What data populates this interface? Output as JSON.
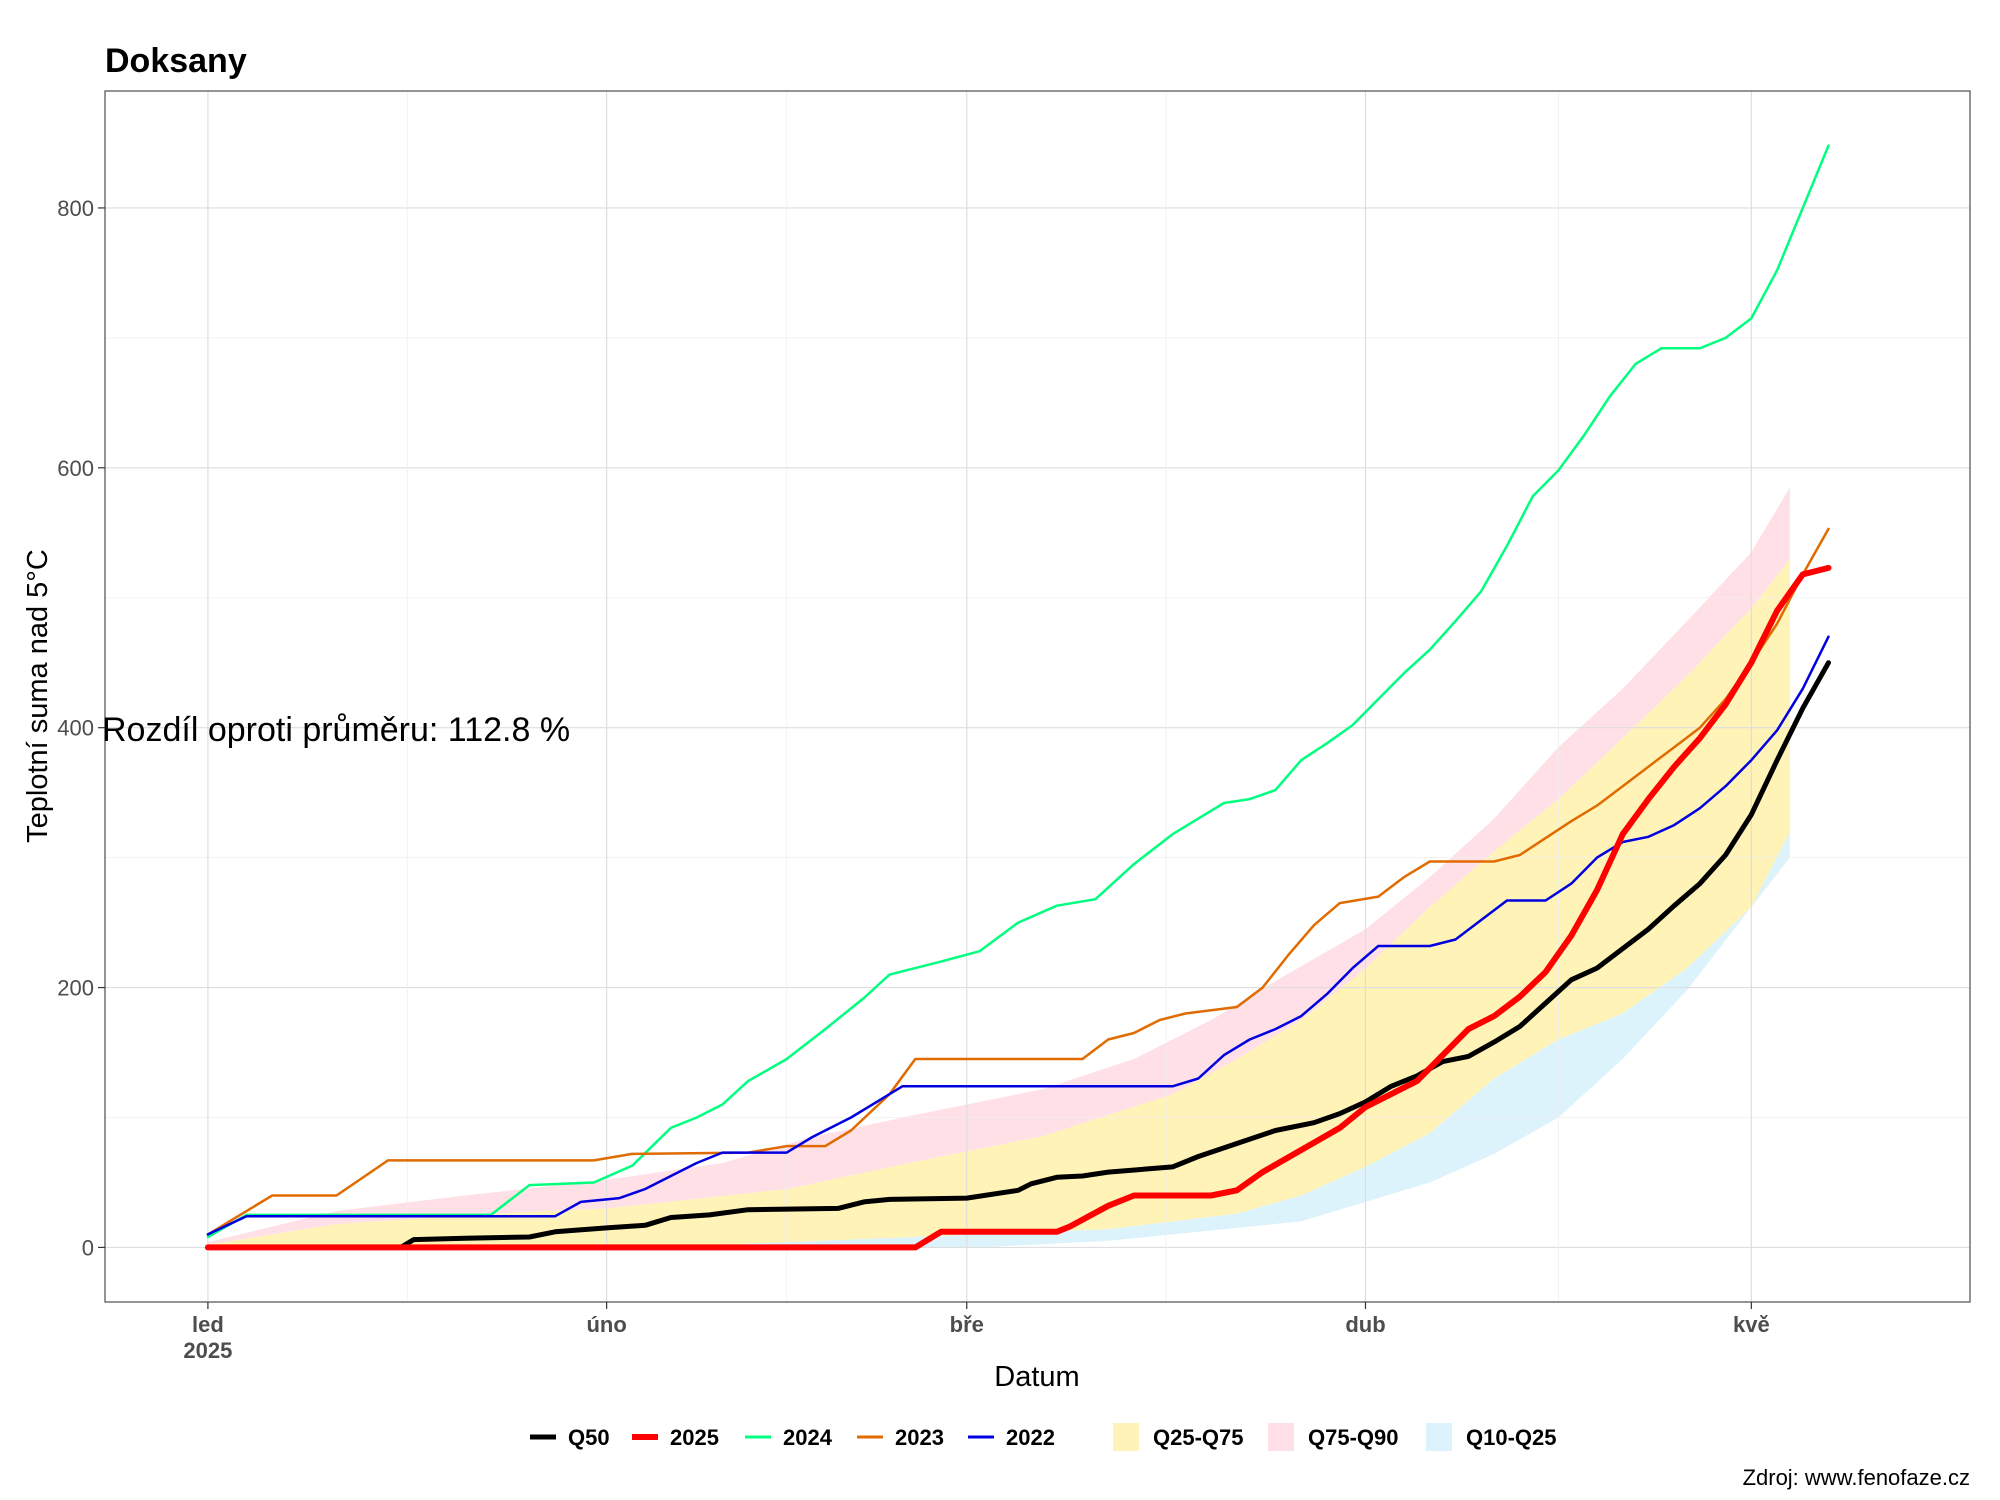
{
  "chart_data": {
    "type": "line",
    "title": "Doksany",
    "xlabel": "Datum",
    "ylabel": "Teplotní suma nad 5°C",
    "ylim": [
      -42,
      890
    ],
    "xlim": [
      -8,
      137
    ],
    "grid": true,
    "legend_position": "bottom",
    "x_ticks": [
      {
        "x": 0,
        "label": "led",
        "sublabel": "2025"
      },
      {
        "x": 31,
        "label": "úno"
      },
      {
        "x": 59,
        "label": "bře"
      },
      {
        "x": 90,
        "label": "dub"
      },
      {
        "x": 120,
        "label": "kvě"
      }
    ],
    "y_ticks": [
      0,
      200,
      400,
      600,
      800
    ],
    "annotation": "Rozdíl oproti průměru: 112.8 %",
    "caption": "Zdroj: www.fenofaze.cz",
    "bands": [
      {
        "name": "Q25-Q75",
        "color": "#FFF3B8",
        "lower": [
          [
            0,
            0
          ],
          [
            20,
            0
          ],
          [
            40,
            2
          ],
          [
            55,
            8
          ],
          [
            70,
            14
          ],
          [
            80,
            26
          ],
          [
            85,
            40
          ],
          [
            90,
            62
          ],
          [
            95,
            88
          ],
          [
            100,
            130
          ],
          [
            105,
            160
          ],
          [
            110,
            180
          ],
          [
            115,
            215
          ],
          [
            120,
            262
          ],
          [
            123,
            300
          ]
        ],
        "upper": [
          [
            0,
            2
          ],
          [
            10,
            18
          ],
          [
            20,
            25
          ],
          [
            31,
            30
          ],
          [
            45,
            45
          ],
          [
            55,
            66
          ],
          [
            65,
            86
          ],
          [
            75,
            118
          ],
          [
            80,
            145
          ],
          [
            85,
            175
          ],
          [
            90,
            215
          ],
          [
            95,
            262
          ],
          [
            100,
            305
          ],
          [
            105,
            345
          ],
          [
            110,
            392
          ],
          [
            115,
            440
          ],
          [
            120,
            492
          ],
          [
            123,
            530
          ]
        ]
      },
      {
        "name": "Q75-Q90",
        "color": "#FFE0E6",
        "lower": [
          [
            0,
            2
          ],
          [
            10,
            18
          ],
          [
            20,
            25
          ],
          [
            31,
            30
          ],
          [
            45,
            45
          ],
          [
            55,
            66
          ],
          [
            65,
            86
          ],
          [
            75,
            118
          ],
          [
            80,
            145
          ],
          [
            85,
            175
          ],
          [
            90,
            215
          ],
          [
            95,
            262
          ],
          [
            100,
            305
          ],
          [
            105,
            345
          ],
          [
            110,
            392
          ],
          [
            115,
            440
          ],
          [
            120,
            492
          ],
          [
            123,
            530
          ]
        ],
        "upper": [
          [
            0,
            4
          ],
          [
            10,
            28
          ],
          [
            20,
            40
          ],
          [
            31,
            52
          ],
          [
            40,
            65
          ],
          [
            47,
            85
          ],
          [
            55,
            102
          ],
          [
            65,
            122
          ],
          [
            72,
            145
          ],
          [
            78,
            175
          ],
          [
            83,
            205
          ],
          [
            90,
            245
          ],
          [
            95,
            285
          ],
          [
            100,
            330
          ],
          [
            105,
            385
          ],
          [
            110,
            430
          ],
          [
            115,
            482
          ],
          [
            120,
            535
          ],
          [
            123,
            585
          ]
        ]
      },
      {
        "name": "Q10-Q25",
        "color": "#DDF3FC",
        "lower": [
          [
            0,
            0
          ],
          [
            50,
            0
          ],
          [
            60,
            0
          ],
          [
            70,
            5
          ],
          [
            80,
            15
          ],
          [
            85,
            20
          ],
          [
            90,
            35
          ],
          [
            95,
            50
          ],
          [
            100,
            72
          ],
          [
            105,
            100
          ],
          [
            110,
            145
          ],
          [
            115,
            198
          ],
          [
            120,
            262
          ],
          [
            123,
            320
          ]
        ],
        "upper": [
          [
            0,
            0
          ],
          [
            20,
            0
          ],
          [
            40,
            2
          ],
          [
            55,
            8
          ],
          [
            70,
            14
          ],
          [
            80,
            26
          ],
          [
            85,
            40
          ],
          [
            90,
            62
          ],
          [
            95,
            88
          ],
          [
            100,
            130
          ],
          [
            105,
            160
          ],
          [
            110,
            180
          ],
          [
            115,
            215
          ],
          [
            120,
            262
          ],
          [
            123,
            300
          ]
        ]
      }
    ],
    "series": [
      {
        "name": "Q50",
        "color": "#000000",
        "width": 5,
        "points": [
          [
            0,
            0
          ],
          [
            15,
            0
          ],
          [
            16,
            6
          ],
          [
            20,
            7
          ],
          [
            25,
            8
          ],
          [
            27,
            12
          ],
          [
            31,
            15
          ],
          [
            34,
            17
          ],
          [
            36,
            23
          ],
          [
            39,
            25
          ],
          [
            42,
            29
          ],
          [
            49,
            30
          ],
          [
            51,
            35
          ],
          [
            53,
            37
          ],
          [
            59,
            38
          ],
          [
            63,
            44
          ],
          [
            64,
            49
          ],
          [
            66,
            54
          ],
          [
            68,
            55
          ],
          [
            70,
            58
          ],
          [
            75,
            62
          ],
          [
            77,
            70
          ],
          [
            80,
            80
          ],
          [
            83,
            90
          ],
          [
            86,
            96
          ],
          [
            88,
            103
          ],
          [
            90,
            112
          ],
          [
            92,
            124
          ],
          [
            94,
            132
          ],
          [
            96,
            143
          ],
          [
            98,
            147
          ],
          [
            100,
            158
          ],
          [
            102,
            170
          ],
          [
            104,
            188
          ],
          [
            106,
            206
          ],
          [
            108,
            215
          ],
          [
            110,
            230
          ],
          [
            112,
            245
          ],
          [
            114,
            263
          ],
          [
            116,
            280
          ],
          [
            118,
            302
          ],
          [
            120,
            333
          ],
          [
            122,
            375
          ],
          [
            124,
            415
          ],
          [
            126,
            450
          ]
        ]
      },
      {
        "name": "2025",
        "color": "#FF0000",
        "width": 6,
        "points": [
          [
            0,
            0
          ],
          [
            55,
            0
          ],
          [
            57,
            12
          ],
          [
            64,
            12
          ],
          [
            66,
            12
          ],
          [
            67,
            16
          ],
          [
            70,
            32
          ],
          [
            72,
            40
          ],
          [
            78,
            40
          ],
          [
            80,
            44
          ],
          [
            82,
            58
          ],
          [
            85,
            75
          ],
          [
            88,
            92
          ],
          [
            90,
            108
          ],
          [
            92,
            118
          ],
          [
            94,
            128
          ],
          [
            96,
            148
          ],
          [
            98,
            168
          ],
          [
            100,
            178
          ],
          [
            102,
            193
          ],
          [
            104,
            212
          ],
          [
            106,
            240
          ],
          [
            108,
            275
          ],
          [
            110,
            318
          ],
          [
            112,
            345
          ],
          [
            114,
            370
          ],
          [
            116,
            392
          ],
          [
            118,
            418
          ],
          [
            120,
            450
          ],
          [
            122,
            490
          ],
          [
            124,
            518
          ],
          [
            126,
            523
          ]
        ]
      },
      {
        "name": "2024",
        "color": "#00FF7F",
        "width": 2.5,
        "points": [
          [
            0,
            8
          ],
          [
            3,
            25
          ],
          [
            22,
            25
          ],
          [
            25,
            48
          ],
          [
            30,
            50
          ],
          [
            33,
            63
          ],
          [
            36,
            92
          ],
          [
            38,
            100
          ],
          [
            40,
            110
          ],
          [
            42,
            128
          ],
          [
            45,
            145
          ],
          [
            48,
            168
          ],
          [
            51,
            192
          ],
          [
            53,
            210
          ],
          [
            55,
            215
          ],
          [
            57,
            220
          ],
          [
            60,
            228
          ],
          [
            63,
            250
          ],
          [
            66,
            263
          ],
          [
            69,
            268
          ],
          [
            72,
            295
          ],
          [
            75,
            318
          ],
          [
            77,
            330
          ],
          [
            79,
            342
          ],
          [
            81,
            345
          ],
          [
            83,
            352
          ],
          [
            85,
            375
          ],
          [
            87,
            388
          ],
          [
            89,
            402
          ],
          [
            91,
            422
          ],
          [
            93,
            442
          ],
          [
            95,
            460
          ],
          [
            97,
            482
          ],
          [
            99,
            505
          ],
          [
            101,
            540
          ],
          [
            103,
            578
          ],
          [
            105,
            598
          ],
          [
            107,
            625
          ],
          [
            109,
            655
          ],
          [
            111,
            680
          ],
          [
            113,
            692
          ],
          [
            116,
            692
          ],
          [
            118,
            700
          ],
          [
            120,
            715
          ],
          [
            122,
            752
          ],
          [
            124,
            800
          ],
          [
            126,
            848
          ]
        ]
      },
      {
        "name": "2023",
        "color": "#E06B00",
        "width": 2.5,
        "points": [
          [
            0,
            10
          ],
          [
            5,
            40
          ],
          [
            10,
            40
          ],
          [
            14,
            67
          ],
          [
            30,
            67
          ],
          [
            33,
            72
          ],
          [
            42,
            73
          ],
          [
            45,
            78
          ],
          [
            48,
            78
          ],
          [
            50,
            90
          ],
          [
            53,
            118
          ],
          [
            55,
            145
          ],
          [
            68,
            145
          ],
          [
            70,
            160
          ],
          [
            72,
            165
          ],
          [
            74,
            175
          ],
          [
            76,
            180
          ],
          [
            80,
            185
          ],
          [
            82,
            200
          ],
          [
            84,
            225
          ],
          [
            86,
            248
          ],
          [
            88,
            265
          ],
          [
            91,
            270
          ],
          [
            93,
            285
          ],
          [
            95,
            297
          ],
          [
            100,
            297
          ],
          [
            102,
            302
          ],
          [
            104,
            315
          ],
          [
            106,
            328
          ],
          [
            108,
            340
          ],
          [
            110,
            355
          ],
          [
            112,
            370
          ],
          [
            114,
            385
          ],
          [
            116,
            400
          ],
          [
            118,
            422
          ],
          [
            120,
            450
          ],
          [
            122,
            480
          ],
          [
            124,
            518
          ],
          [
            126,
            553
          ]
        ]
      },
      {
        "name": "2022",
        "color": "#0000E0",
        "width": 2.5,
        "points": [
          [
            0,
            10
          ],
          [
            3,
            24
          ],
          [
            27,
            24
          ],
          [
            29,
            35
          ],
          [
            32,
            38
          ],
          [
            34,
            45
          ],
          [
            36,
            55
          ],
          [
            38,
            65
          ],
          [
            40,
            73
          ],
          [
            45,
            73
          ],
          [
            47,
            85
          ],
          [
            50,
            100
          ],
          [
            52,
            112
          ],
          [
            54,
            124
          ],
          [
            75,
            124
          ],
          [
            77,
            130
          ],
          [
            79,
            148
          ],
          [
            81,
            160
          ],
          [
            83,
            168
          ],
          [
            85,
            178
          ],
          [
            87,
            195
          ],
          [
            89,
            215
          ],
          [
            91,
            232
          ],
          [
            95,
            232
          ],
          [
            97,
            237
          ],
          [
            99,
            252
          ],
          [
            101,
            267
          ],
          [
            104,
            267
          ],
          [
            106,
            280
          ],
          [
            108,
            300
          ],
          [
            110,
            312
          ],
          [
            112,
            316
          ],
          [
            114,
            325
          ],
          [
            116,
            338
          ],
          [
            118,
            355
          ],
          [
            120,
            375
          ],
          [
            122,
            398
          ],
          [
            124,
            430
          ],
          [
            126,
            470
          ]
        ]
      }
    ]
  }
}
